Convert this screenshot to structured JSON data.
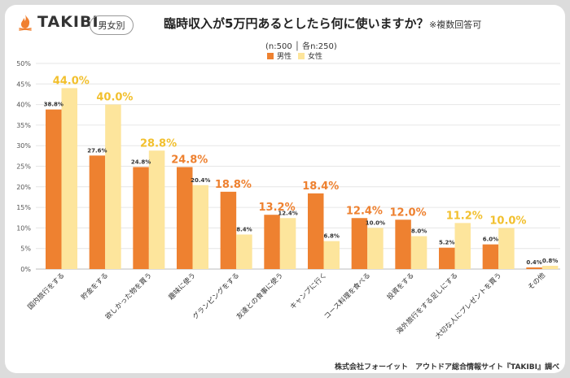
{
  "brand": {
    "logo_text": "TAKIBI",
    "flame_color": "#F08030"
  },
  "badge": "男女別",
  "title": "臨時収入が5万円あるとしたら何に使いますか？",
  "note": "※複数回答可",
  "sample_label": "(n:500 │ 各n:250)",
  "source": "株式会社フォーイット　アウトドア総合情報サイト『TAKIBI』調べ",
  "colors": {
    "male": "#EE8130",
    "female": "#FDE59C",
    "male_label": "#EE8130",
    "female_label": "#F2C02E"
  },
  "chart_data": {
    "type": "bar",
    "categories": [
      "国内旅行をする",
      "貯金をする",
      "欲しかった物を買う",
      "趣味に使う",
      "グランピングをする",
      "友達との食事に使う",
      "キャンプに行く",
      "コース料理を食べる",
      "投資をする",
      "海外旅行をする足しにする",
      "大切な人にプレゼントを買う",
      "その他"
    ],
    "series": [
      {
        "name": "男性",
        "values": [
          38.8,
          27.6,
          24.8,
          24.8,
          18.8,
          13.2,
          18.4,
          12.4,
          12.0,
          5.2,
          6.0,
          0.4
        ]
      },
      {
        "name": "女性",
        "values": [
          44.0,
          40.0,
          28.8,
          20.4,
          8.4,
          12.4,
          6.8,
          10.0,
          8.0,
          11.2,
          10.0,
          0.8
        ]
      }
    ],
    "value_labels": {
      "male": [
        "38.8%",
        "27.6%",
        "24.8%",
        "24.8%",
        "18.8%",
        "13.2%",
        "18.4%",
        "12.4%",
        "12.0%",
        "5.2%",
        "6.0%",
        "0.4%"
      ],
      "female": [
        "44.0%",
        "40.0%",
        "28.8%",
        "20.4%",
        "8.4%",
        "12.4%",
        "6.8%",
        "10.0%",
        "8.0%",
        "11.2%",
        "10.0%",
        "0.8%"
      ]
    },
    "highlight": [
      "female",
      "female",
      "female",
      "male",
      "male",
      "male",
      "male",
      "male",
      "male",
      "female",
      "female",
      "none"
    ],
    "yticks": [
      0,
      5,
      10,
      15,
      20,
      25,
      30,
      35,
      40,
      45,
      50
    ],
    "ytick_labels": [
      "0%",
      "5%",
      "10%",
      "15%",
      "20%",
      "25%",
      "30%",
      "35%",
      "40%",
      "45%",
      "50%"
    ],
    "ylim": [
      0,
      50
    ],
    "grid": true,
    "legend": "top-center"
  }
}
